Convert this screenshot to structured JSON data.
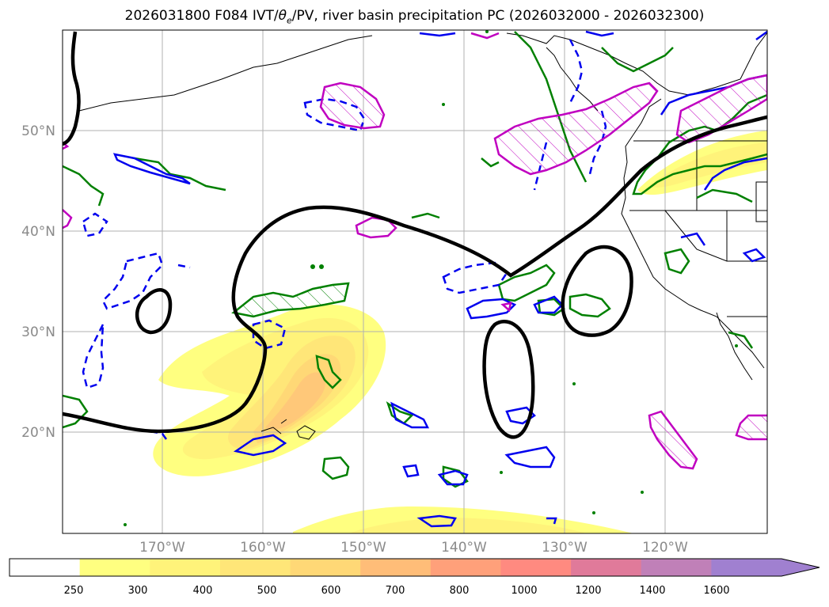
{
  "title": {
    "run": "2026031800",
    "forecast_hour": "F084",
    "fields_prefix": "IVT/",
    "theta_symbol": "θ",
    "theta_subscript": "e",
    "fields_suffix": "/PV, river basin precipitation PC",
    "valid_range": "(2026032000 - 2026032300)"
  },
  "map": {
    "lat_labels": [
      "50°N",
      "40°N",
      "30°N",
      "20°N"
    ],
    "lon_labels": [
      "170°W",
      "160°W",
      "150°W",
      "140°W",
      "130°W",
      "120°W"
    ],
    "colors": {
      "background": "#ffffff",
      "gridlines": "#b0b0b0",
      "coastline": "#000000",
      "pv_contour": "#000000",
      "theta_e_contour": "#0000ee",
      "green_contour": "#008000",
      "magenta_contour": "#c000c0"
    }
  },
  "colorbar": {
    "ticks": [
      "250",
      "300",
      "400",
      "500",
      "600",
      "700",
      "800",
      "1000",
      "1200",
      "1400",
      "1600"
    ],
    "colors": [
      "#ffffff",
      "#ffff80",
      "#fff37a",
      "#ffe678",
      "#ffd876",
      "#ffbd78",
      "#ffa07a",
      "#ff8a80",
      "#e07a9a",
      "#c080b8",
      "#a080d0"
    ]
  }
}
